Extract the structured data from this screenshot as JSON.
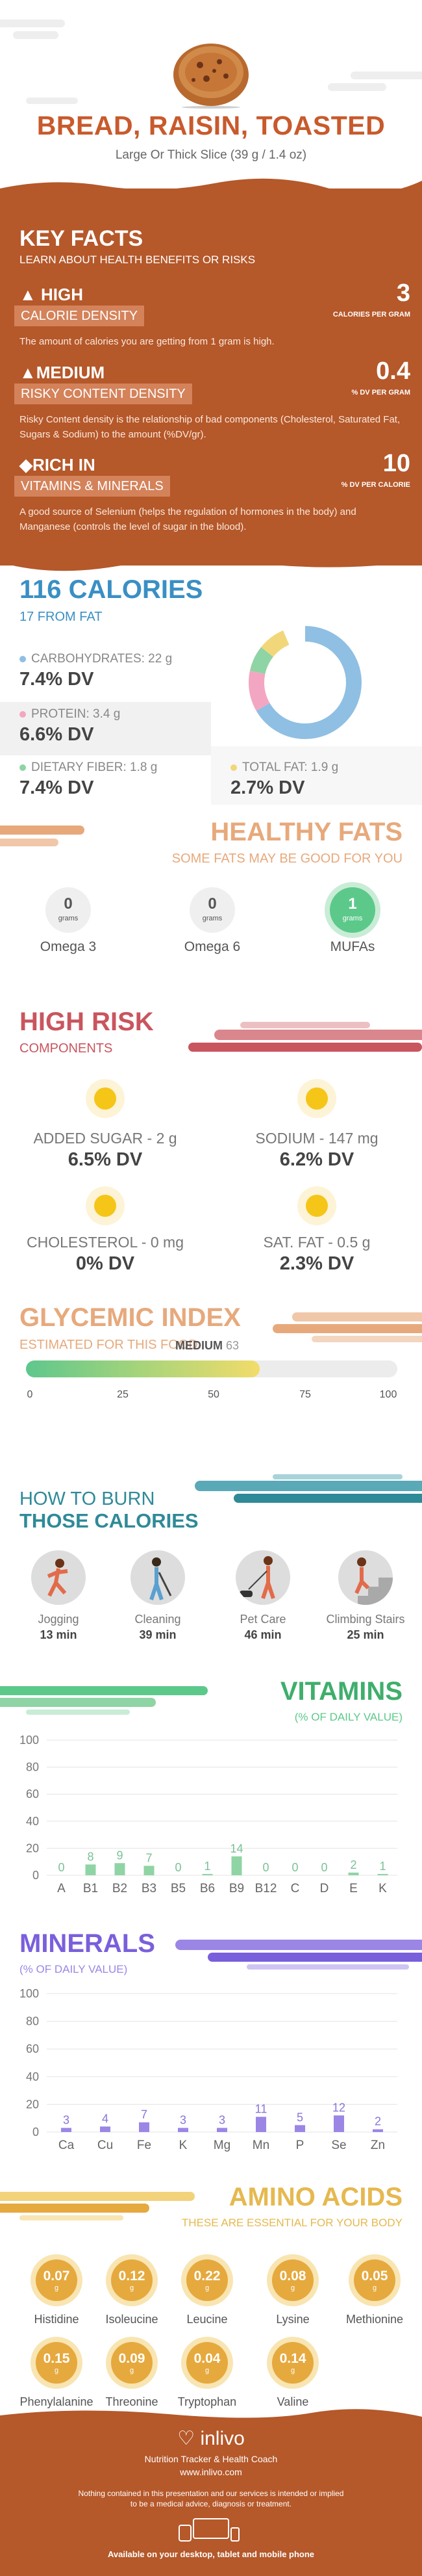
{
  "header": {
    "title": "BREAD, RAISIN, TOASTED",
    "subtitle": "Large Or Thick Slice (39 g / 1.4 oz)"
  },
  "key_facts": {
    "heading": "KEY FACTS",
    "subheading": "LEARN ABOUT HEALTH BENEFITS OR RISKS",
    "facts": [
      {
        "level": "HIGH",
        "label": "CALORIE DENSITY",
        "value": "3",
        "unit": "CALORIES PER GRAM",
        "desc": "The amount of calories you are getting from 1 gram is high."
      },
      {
        "level": "MEDIUM",
        "label": "RISKY CONTENT DENSITY",
        "value": "0.4",
        "unit": "% DV PER GRAM",
        "desc": "Risky Content density is the relationship of bad components (Cholesterol, Saturated Fat, Sugars & Sodium) to the amount (%DV/gr)."
      },
      {
        "level": "RICH  IN",
        "label": "VITAMINS & MINERALS",
        "value": "10",
        "unit": "% DV PER CALORIE",
        "desc": "A good source of Selenium (helps the regulation of hormones in the body) and Manganese (controls the level of sugar in the blood)."
      }
    ]
  },
  "calories": {
    "heading": "116 CALORIES",
    "subheading": "17 FROM FAT",
    "nutrients": [
      {
        "label": "CARBOHYDRATES: 22 g",
        "dv": "7.4% DV",
        "color": "#8fbfe3"
      },
      {
        "label": "PROTEIN: 3.4 g",
        "dv": "6.6% DV",
        "color": "#f3a6c2"
      },
      {
        "label": "DIETARY FIBER: 1.8 g",
        "dv": "7.4% DV",
        "color": "#8fd4a4"
      },
      {
        "label": "TOTAL FAT: 1.9 g",
        "dv": "2.7% DV",
        "color": "#f2d77a"
      }
    ]
  },
  "healthy_fats": {
    "heading": "HEALTHY FATS",
    "subheading": "SOME FATS MAY BE GOOD FOR YOU",
    "items": [
      {
        "value": "0",
        "unit": "grams",
        "name": "Omega 3"
      },
      {
        "value": "0",
        "unit": "grams",
        "name": "Omega 6"
      },
      {
        "value": "1",
        "unit": "grams",
        "name": "MUFAs"
      }
    ]
  },
  "high_risk": {
    "heading": "HIGH RISK",
    "subheading": "COMPONENTS",
    "items": [
      {
        "label": "ADDED SUGAR - 2 g",
        "dv": "6.5% DV"
      },
      {
        "label": "SODIUM - 147 mg",
        "dv": "6.2% DV"
      },
      {
        "label": "CHOLESTEROL - 0 mg",
        "dv": "0% DV"
      },
      {
        "label": "SAT. FAT - 0.5 g",
        "dv": "2.3% DV"
      }
    ]
  },
  "glycemic": {
    "heading": "GLYCEMIC INDEX",
    "subheading": "ESTIMATED FOR THIS FOOD",
    "level": "MEDIUM",
    "value": "63",
    "value_num": 63,
    "ticks": [
      "0",
      "25",
      "50",
      "75",
      "100"
    ]
  },
  "burn": {
    "heading1": "HOW TO BURN",
    "heading2": "THOSE CALORIES",
    "activities": [
      {
        "name": "Jogging",
        "time": "13 min",
        "icon": "jogging-icon"
      },
      {
        "name": "Cleaning",
        "time": "39 min",
        "icon": "cleaning-icon"
      },
      {
        "name": "Pet Care",
        "time": "46 min",
        "icon": "pet-care-icon"
      },
      {
        "name": "Climbing Stairs",
        "time": "25 min",
        "icon": "climbing-stairs-icon"
      }
    ]
  },
  "chart_data": [
    {
      "type": "bar",
      "title": "VITAMINS",
      "subtitle": "(% OF DAILY VALUE)",
      "categories": [
        "A",
        "B1",
        "B2",
        "B3",
        "B5",
        "B6",
        "B9",
        "B12",
        "C",
        "D",
        "E",
        "K"
      ],
      "values": [
        0,
        8,
        9,
        7,
        0,
        1,
        14,
        0,
        0,
        0,
        2,
        1
      ],
      "labels": [
        "0",
        "8",
        "9",
        "7",
        "0",
        "1",
        "14",
        "0",
        "0",
        "0",
        "2",
        "1"
      ],
      "yticks": [
        "0",
        "20",
        "40",
        "60",
        "80",
        "100"
      ],
      "ylim": [
        0,
        100
      ],
      "color": "#8fd4a4",
      "label_color": "#7ac296"
    },
    {
      "type": "bar",
      "title": "MINERALS",
      "subtitle": "(% OF DAILY VALUE)",
      "categories": [
        "Ca",
        "Cu",
        "Fe",
        "K",
        "Mg",
        "Mn",
        "P",
        "Se",
        "Zn"
      ],
      "values": [
        3,
        4,
        7,
        3,
        3,
        11,
        5,
        12,
        2
      ],
      "labels": [
        "3",
        "4",
        "7",
        "3",
        "3",
        "11",
        "5",
        "12",
        "2"
      ],
      "yticks": [
        "0",
        "20",
        "40",
        "60",
        "80",
        "100"
      ],
      "ylim": [
        0,
        100
      ],
      "color": "#9b86e6",
      "label_color": "#8a74d8"
    }
  ],
  "amino": {
    "heading": "AMINO ACIDS",
    "subheading": "THESE ARE ESSENTIAL FOR YOUR BODY",
    "unit": "g",
    "items": [
      {
        "value": "0.07",
        "name": "Histidine"
      },
      {
        "value": "0.12",
        "name": "Isoleucine"
      },
      {
        "value": "0.22",
        "name": "Leucine"
      },
      {
        "value": "0.08",
        "name": "Lysine"
      },
      {
        "value": "0.05",
        "name": "Methionine"
      },
      {
        "value": "0.15",
        "name": "Phenylalanine"
      },
      {
        "value": "0.09",
        "name": "Threonine"
      },
      {
        "value": "0.04",
        "name": "Tryptophan"
      },
      {
        "value": "0.14",
        "name": "Valine"
      }
    ]
  },
  "footer": {
    "brand": "inlivo",
    "tagline": "Nutrition Tracker & Health Coach",
    "url": "www.inlivo.com",
    "disclaimer1": "Nothing contained in this presentation and our services is intended or implied",
    "disclaimer2": "to be a medical advice, diagnosis or treatment.",
    "available": "Available on your desktop, tablet and mobile phone"
  }
}
